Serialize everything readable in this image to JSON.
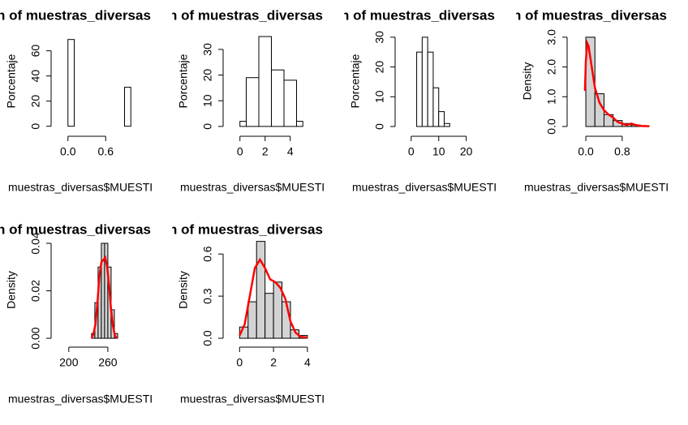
{
  "chart_data": [
    {
      "type": "histogram",
      "title": "n of muestras_diversas",
      "xlabel": "muestras_diversas$MUESTI",
      "ylabel": "Porcentaje",
      "bins": [
        0,
        0.1,
        0.2,
        0.3,
        0.4,
        0.5,
        0.6,
        0.7,
        0.8,
        0.9,
        1.0
      ],
      "values": [
        69,
        0,
        0,
        0,
        0,
        0,
        0,
        0,
        0,
        31
      ],
      "bar_color": "#ffffff",
      "xlim": [
        -0.1,
        1.1
      ],
      "ylim": [
        -2.8,
        74.6
      ],
      "xticks": [
        {
          "value": 0,
          "label": "0.0"
        },
        {
          "value": 0.6,
          "label": "0.6"
        }
      ],
      "yticks": [
        0,
        20,
        40,
        60
      ]
    },
    {
      "type": "histogram",
      "title": "n of muestras_diversas",
      "xlabel": "muestras_diversas$MUESTI",
      "ylabel": "Porcentaje",
      "bins": [
        0,
        0.5,
        1.5,
        2.5,
        3.5,
        4.5,
        5
      ],
      "values": [
        2,
        19,
        35,
        22,
        18,
        2
      ],
      "bar_color": "#ffffff",
      "xlim": [
        -0.5,
        5.5
      ],
      "ylim": [
        -1.3,
        36.6
      ],
      "xticks": [
        0,
        2,
        4
      ],
      "yticks": [
        0,
        10,
        20,
        30
      ]
    },
    {
      "type": "histogram",
      "title": "n of muestras_diversas",
      "xlabel": "muestras_diversas$MUESTI",
      "ylabel": "Porcentaje",
      "bins": [
        2,
        4,
        6,
        8,
        10,
        12,
        14
      ],
      "values": [
        25,
        30,
        25,
        13,
        5,
        1
      ],
      "bar_color": "#ffffff",
      "xlim": [
        -2,
        25.4
      ],
      "ylim": [
        -1.1,
        31.6
      ],
      "xticks": [
        0,
        10,
        20
      ],
      "yticks": [
        0,
        10,
        20,
        30
      ]
    },
    {
      "type": "histogram",
      "title": "n of muestras_diversas",
      "xlabel": "muestras_diversas$MUESTI",
      "ylabel": "Density",
      "bins": [
        0,
        0.2,
        0.4,
        0.6,
        0.8,
        1.0,
        1.2
      ],
      "values": [
        3.0,
        1.1,
        0.4,
        0.2,
        0.1,
        0.05
      ],
      "bar_color": "#d3d3d3",
      "curve": {
        "color": "#ff0000",
        "x": [
          -0.02,
          0,
          0.03,
          0.06,
          0.1,
          0.15,
          0.2,
          0.3,
          0.4,
          0.5,
          0.6,
          0.7,
          0.8,
          0.9,
          1.0,
          1.1,
          1.2,
          1.4
        ],
        "y": [
          1.2,
          2.2,
          2.8,
          2.7,
          2.3,
          1.8,
          1.3,
          0.8,
          0.55,
          0.4,
          0.3,
          0.15,
          0.1,
          0.05,
          0.1,
          0.05,
          0.02,
          0.01
        ]
      },
      "xlim": [
        -0.18,
        1.48
      ],
      "ylim": [
        -0.11,
        3.16
      ],
      "xticks": [
        {
          "value": 0,
          "label": "0.0"
        },
        {
          "value": 0.8,
          "label": "0.8"
        }
      ],
      "yticks": [
        {
          "value": 0,
          "label": "0.0"
        },
        {
          "value": 1,
          "label": "1.0"
        },
        {
          "value": 2,
          "label": "2.0"
        },
        {
          "value": 3,
          "label": "3.0"
        }
      ]
    },
    {
      "type": "histogram",
      "title": "n of muestras_diversas",
      "xlabel": "muestras_diversas$MUESTI",
      "ylabel": "Density",
      "bins": [
        235,
        240,
        245,
        250,
        255,
        260,
        265,
        270,
        275
      ],
      "values": [
        0.002,
        0.015,
        0.03,
        0.04,
        0.04,
        0.03,
        0.012,
        0.002
      ],
      "bar_color": "#d3d3d3",
      "curve": {
        "color": "#ff0000",
        "x": [
          235,
          238,
          241,
          244,
          247,
          250,
          253,
          256,
          259,
          262,
          265,
          268,
          271,
          274
        ],
        "y": [
          0,
          0.002,
          0.006,
          0.015,
          0.026,
          0.032,
          0.033,
          0.034,
          0.03,
          0.022,
          0.012,
          0.005,
          0.001,
          0
        ]
      },
      "xlim": [
        189,
        305
      ],
      "ylim": [
        -0.001,
        0.0417
      ],
      "xticks": [
        200,
        260
      ],
      "yticks": [
        {
          "value": 0,
          "label": "0.00"
        },
        {
          "value": 0.02,
          "label": "0.02"
        },
        {
          "value": 0.04,
          "label": "0.04"
        }
      ]
    },
    {
      "type": "histogram",
      "title": "n of muestras_diversas",
      "xlabel": "muestras_diversas$MUESTI",
      "ylabel": "Density",
      "bins": [
        0,
        0.5,
        1,
        1.5,
        2,
        2.5,
        3,
        3.5,
        4
      ],
      "values": [
        0.08,
        0.26,
        0.69,
        0.32,
        0.4,
        0.26,
        0.06,
        0.02
      ],
      "bar_color": "#d3d3d3",
      "curve": {
        "color": "#ff0000",
        "x": [
          0,
          0.3,
          0.6,
          0.9,
          1.2,
          1.5,
          1.8,
          2.1,
          2.4,
          2.7,
          3.0,
          3.3,
          3.6,
          4.0
        ],
        "y": [
          0.02,
          0.1,
          0.3,
          0.5,
          0.56,
          0.5,
          0.42,
          0.4,
          0.36,
          0.28,
          0.12,
          0.04,
          0.01,
          0.005
        ]
      },
      "xlim": [
        -0.35,
        4.1
      ],
      "ylim": [
        -0.017,
        0.705
      ],
      "xticks": [
        0,
        2,
        4
      ],
      "yticks": [
        {
          "value": 0,
          "label": "0.0"
        },
        {
          "value": 0.3,
          "label": "0.3"
        },
        {
          "value": 0.6,
          "label": "0.6"
        }
      ]
    }
  ]
}
